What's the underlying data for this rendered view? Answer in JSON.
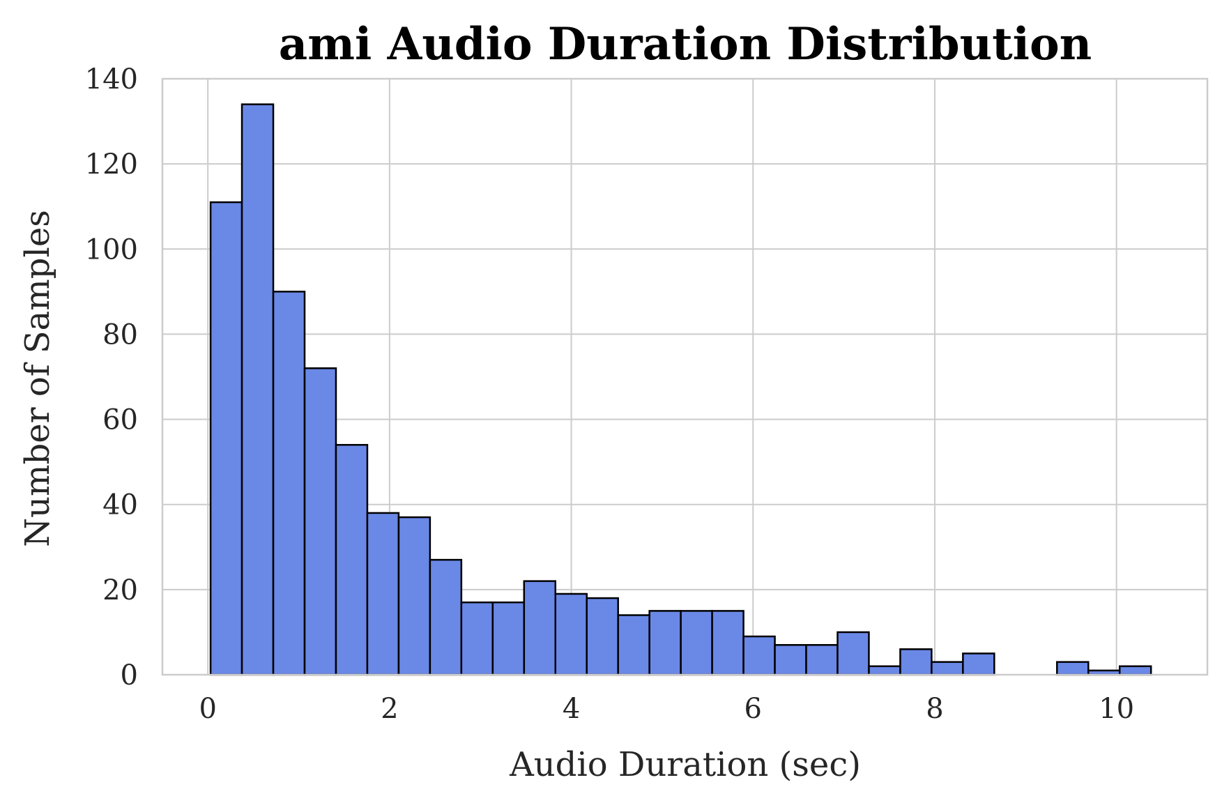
{
  "chart_data": {
    "type": "bar",
    "title": "ami Audio Duration Distribution",
    "xlabel": "Audio Duration (sec)",
    "ylabel": "Number of Samples",
    "xlim": [
      -0.5,
      11.0
    ],
    "ylim": [
      0,
      140
    ],
    "xticks": [
      0,
      2,
      4,
      6,
      8,
      10
    ],
    "yticks": [
      0,
      20,
      40,
      60,
      80,
      100,
      120,
      140
    ],
    "grid": true,
    "bar_color": "#6a88e6",
    "edge_color": "#000000",
    "bins": [
      {
        "x0": 0.03,
        "x1": 0.375,
        "count": 111
      },
      {
        "x0": 0.375,
        "x1": 0.72,
        "count": 134
      },
      {
        "x0": 0.72,
        "x1": 1.065,
        "count": 90
      },
      {
        "x0": 1.065,
        "x1": 1.41,
        "count": 72
      },
      {
        "x0": 1.41,
        "x1": 1.755,
        "count": 54
      },
      {
        "x0": 1.755,
        "x1": 2.1,
        "count": 38
      },
      {
        "x0": 2.1,
        "x1": 2.445,
        "count": 37
      },
      {
        "x0": 2.445,
        "x1": 2.79,
        "count": 27
      },
      {
        "x0": 2.79,
        "x1": 3.135,
        "count": 17
      },
      {
        "x0": 3.135,
        "x1": 3.48,
        "count": 17
      },
      {
        "x0": 3.48,
        "x1": 3.825,
        "count": 22
      },
      {
        "x0": 3.825,
        "x1": 4.17,
        "count": 19
      },
      {
        "x0": 4.17,
        "x1": 4.515,
        "count": 18
      },
      {
        "x0": 4.515,
        "x1": 4.86,
        "count": 14
      },
      {
        "x0": 4.86,
        "x1": 5.205,
        "count": 15
      },
      {
        "x0": 5.205,
        "x1": 5.55,
        "count": 15
      },
      {
        "x0": 5.55,
        "x1": 5.895,
        "count": 15
      },
      {
        "x0": 5.895,
        "x1": 6.24,
        "count": 9
      },
      {
        "x0": 6.24,
        "x1": 6.585,
        "count": 7
      },
      {
        "x0": 6.585,
        "x1": 6.93,
        "count": 7
      },
      {
        "x0": 6.93,
        "x1": 7.275,
        "count": 10
      },
      {
        "x0": 7.275,
        "x1": 7.62,
        "count": 2
      },
      {
        "x0": 7.62,
        "x1": 7.965,
        "count": 6
      },
      {
        "x0": 7.965,
        "x1": 8.31,
        "count": 3
      },
      {
        "x0": 8.31,
        "x1": 8.655,
        "count": 5
      },
      {
        "x0": 8.655,
        "x1": 9.0,
        "count": 0
      },
      {
        "x0": 9.0,
        "x1": 9.345,
        "count": 0
      },
      {
        "x0": 9.345,
        "x1": 9.69,
        "count": 3
      },
      {
        "x0": 9.69,
        "x1": 10.035,
        "count": 1
      },
      {
        "x0": 10.035,
        "x1": 10.38,
        "count": 2
      }
    ]
  }
}
